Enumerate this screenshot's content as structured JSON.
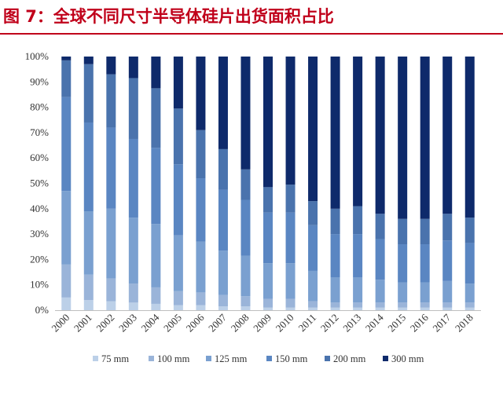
{
  "title": "图 7：全球不同尺寸半导体硅片出货面积占比",
  "colors": {
    "title_red": "#c0001a",
    "axis": "#bfbfbf",
    "series": [
      "#bcd0e8",
      "#9ab4d9",
      "#7aa0d0",
      "#5a86c2",
      "#4a73ad",
      "#0e2a6b"
    ]
  },
  "chart_data": {
    "type": "bar",
    "stacked": true,
    "percent": true,
    "categories": [
      "2000",
      "2001",
      "2002",
      "2003",
      "2004",
      "2005",
      "2006",
      "2007",
      "2008",
      "2009",
      "2010",
      "2011",
      "2012",
      "2013",
      "2014",
      "2015",
      "2016",
      "2017",
      "2018"
    ],
    "y_ticks": [
      "0%",
      "10%",
      "20%",
      "30%",
      "40%",
      "50%",
      "60%",
      "70%",
      "80%",
      "90%",
      "100%"
    ],
    "ylim": [
      0,
      100
    ],
    "legend_position": "bottom",
    "series": [
      {
        "name": "75 mm",
        "values": [
          5,
          4,
          3.5,
          3,
          2.5,
          2,
          2,
          1.5,
          1.5,
          1,
          1,
          1,
          1,
          1,
          1,
          1,
          1,
          1,
          1
        ]
      },
      {
        "name": "100 mm",
        "values": [
          13,
          10,
          9,
          7.5,
          6.5,
          5.5,
          5,
          4.5,
          4,
          3.5,
          3.5,
          2.5,
          2,
          2,
          2,
          2,
          2,
          2,
          2
        ]
      },
      {
        "name": "125 mm",
        "values": [
          29,
          25,
          27.5,
          26,
          25,
          22,
          20,
          17.5,
          16,
          14,
          14,
          12,
          10,
          10,
          9,
          8,
          8,
          8.5,
          7.5
        ]
      },
      {
        "name": "150 mm",
        "values": [
          37,
          35,
          32,
          31,
          30,
          28,
          25,
          24,
          22,
          20,
          20,
          18,
          17,
          17,
          16,
          15,
          15,
          16,
          16
        ]
      },
      {
        "name": "200 mm",
        "values": [
          14.5,
          23,
          21,
          24,
          23.5,
          22,
          19,
          16,
          12,
          10,
          11,
          9.5,
          10,
          11,
          10,
          10,
          10,
          10.5,
          10
        ]
      },
      {
        "name": "300 mm",
        "values": [
          1.5,
          3,
          7,
          8.5,
          12.5,
          20.5,
          29,
          36.5,
          44.5,
          51.5,
          50.5,
          57,
          60,
          59,
          62,
          64,
          64,
          62,
          63.5
        ]
      }
    ]
  }
}
